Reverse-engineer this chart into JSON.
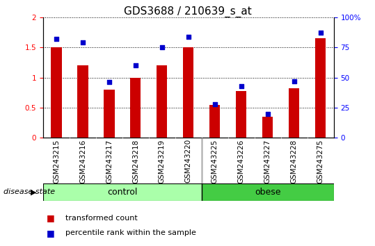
{
  "title": "GDS3688 / 210639_s_at",
  "samples": [
    "GSM243215",
    "GSM243216",
    "GSM243217",
    "GSM243218",
    "GSM243219",
    "GSM243220",
    "GSM243225",
    "GSM243226",
    "GSM243227",
    "GSM243228",
    "GSM243275"
  ],
  "transformed_count": [
    1.5,
    1.2,
    0.8,
    1.0,
    1.2,
    1.5,
    0.55,
    0.78,
    0.35,
    0.82,
    1.65
  ],
  "percentile_rank": [
    82,
    79,
    46,
    60,
    75,
    84,
    28,
    43,
    20,
    47,
    87
  ],
  "group_labels": [
    "control",
    "obese"
  ],
  "ctrl_count": 6,
  "obese_count": 5,
  "ctrl_color": "#AAFFAA",
  "obese_color": "#44CC44",
  "bar_color": "#CC0000",
  "dot_color": "#0000CC",
  "ylim_left": [
    0,
    2
  ],
  "ylim_right": [
    0,
    100
  ],
  "yticks_left": [
    0,
    0.5,
    1.0,
    1.5,
    2.0
  ],
  "yticks_right": [
    0,
    25,
    50,
    75,
    100
  ],
  "ytick_labels_left": [
    "0",
    "0.5",
    "1",
    "1.5",
    "2"
  ],
  "ytick_labels_right": [
    "0",
    "25",
    "50",
    "75",
    "100%"
  ],
  "legend_bar_label": "transformed count",
  "legend_dot_label": "percentile rank within the sample",
  "disease_state_label": "disease state",
  "bg_color_xlab": "#CCCCCC",
  "title_fontsize": 11,
  "tick_fontsize": 7.5,
  "group_fontsize": 9
}
